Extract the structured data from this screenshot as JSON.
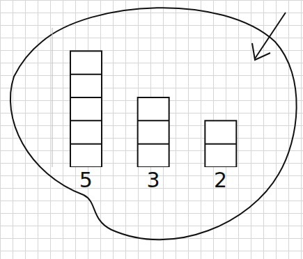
{
  "chart_data": {
    "type": "bar",
    "categories": [
      "5",
      "3",
      "2"
    ],
    "values": [
      5,
      3,
      2
    ],
    "color": "#ffffff",
    "ylim": [
      0,
      6
    ],
    "yticks": [],
    "grid": false,
    "tick_labels": "x"
  }
}
